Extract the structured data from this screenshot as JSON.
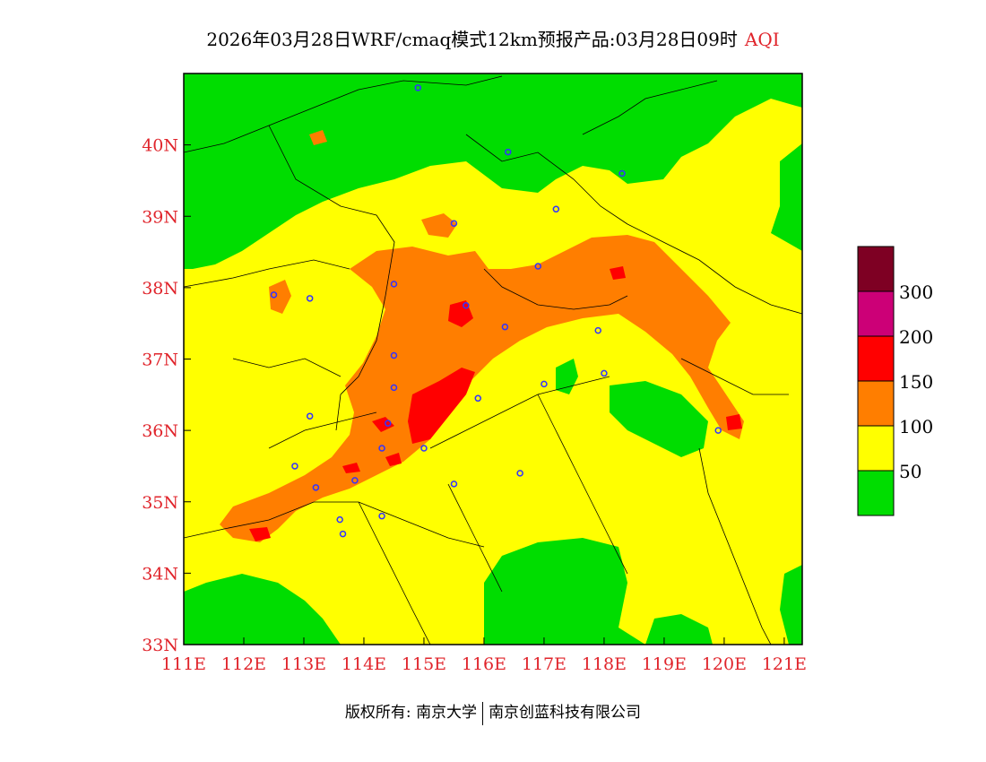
{
  "header": {
    "title": "2026年03月28日WRF/cmaq模式12km预报产品:03月28日09时",
    "title_tag": "AQI"
  },
  "map": {
    "lat_labels": [
      "33N",
      "34N",
      "35N",
      "36N",
      "37N",
      "38N",
      "39N",
      "40N"
    ],
    "lon_labels": [
      "111E",
      "112E",
      "113E",
      "114E",
      "115E",
      "116E",
      "117E",
      "118E",
      "119E",
      "120E",
      "121E"
    ],
    "lat_range": [
      33,
      41
    ],
    "lon_range": [
      111,
      121.3
    ]
  },
  "legend": {
    "labels": [
      "50",
      "100",
      "150",
      "200",
      "300"
    ],
    "bands": [
      {
        "range": "0-50",
        "color": "#00dd00"
      },
      {
        "range": "50-100",
        "color": "#ffff00"
      },
      {
        "range": "100-150",
        "color": "#ff7e00"
      },
      {
        "range": "150-200",
        "color": "#ff0000"
      },
      {
        "range": "200-300",
        "color": "#cc0077"
      },
      {
        "range": "300+",
        "color": "#7e0023"
      }
    ]
  },
  "footer": {
    "copyright_prefix": "版权所有:",
    "org1": "南京大学",
    "org2": "南京创蓝科技有限公司"
  },
  "colors": {
    "axis_label": "#e0242b",
    "green": "#00dd00",
    "yellow": "#ffff00",
    "orange": "#ff7e00",
    "red": "#ff0000",
    "city_marker": "#3333ff"
  },
  "cities": [
    [
      114.5,
      38.05
    ],
    [
      114.4,
      36.1
    ],
    [
      113.6,
      34.75
    ],
    [
      112.5,
      37.9
    ],
    [
      115.7,
      37.75
    ],
    [
      116.4,
      39.9
    ],
    [
      117.2,
      39.1
    ],
    [
      114.9,
      40.8
    ],
    [
      115.5,
      38.9
    ],
    [
      116.9,
      38.3
    ],
    [
      117.0,
      36.65
    ],
    [
      118.0,
      36.8
    ],
    [
      118.3,
      39.6
    ],
    [
      116.35,
      37.45
    ],
    [
      114.3,
      35.75
    ],
    [
      113.2,
      35.2
    ],
    [
      115.0,
      35.75
    ],
    [
      115.9,
      36.45
    ],
    [
      116.6,
      35.4
    ],
    [
      115.5,
      35.25
    ],
    [
      113.85,
      35.3
    ],
    [
      114.5,
      36.6
    ],
    [
      114.5,
      37.05
    ],
    [
      113.1,
      36.2
    ],
    [
      112.85,
      35.5
    ],
    [
      113.1,
      37.85
    ],
    [
      119.9,
      36.0
    ],
    [
      117.9,
      37.4
    ],
    [
      113.65,
      34.55
    ],
    [
      114.3,
      34.8
    ]
  ]
}
